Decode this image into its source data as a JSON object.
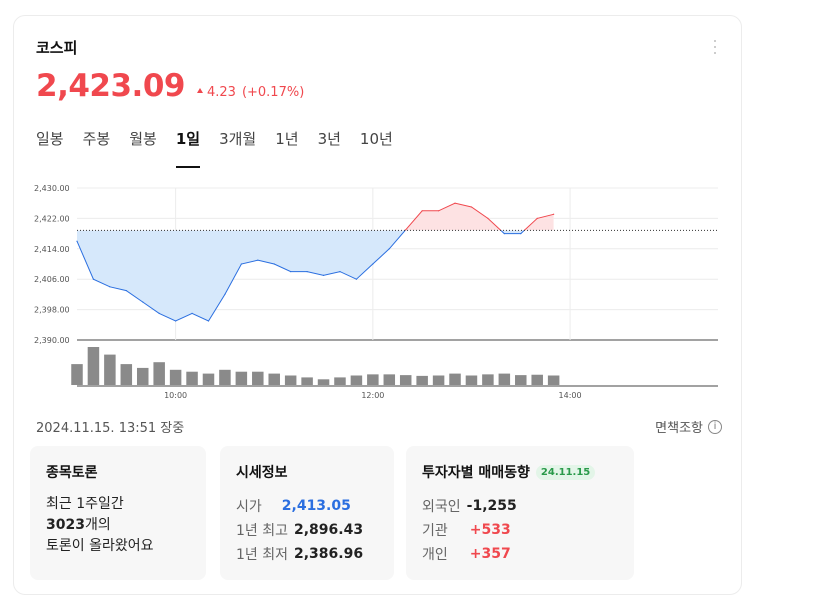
{
  "index_name": "코스피",
  "price": "2,423.09",
  "change": {
    "amount": "4.23",
    "percent": "(+0.17%)",
    "direction": "up"
  },
  "tabs": [
    {
      "label": "일봉",
      "active": false
    },
    {
      "label": "주봉",
      "active": false
    },
    {
      "label": "월봉",
      "active": false
    },
    {
      "label": "1일",
      "active": true
    },
    {
      "label": "3개월",
      "active": false
    },
    {
      "label": "1년",
      "active": false
    },
    {
      "label": "3년",
      "active": false
    },
    {
      "label": "10년",
      "active": false
    }
  ],
  "colors": {
    "up": "#f0484e",
    "down": "#2b6fe0",
    "up_fill": "#fde2e3",
    "down_fill": "#d6e8fb",
    "volume": "#8a8a8a"
  },
  "chart_data": {
    "type": "area",
    "yticks": [
      "2,430.00",
      "2,422.00",
      "2,414.00",
      "2,406.00",
      "2,398.00",
      "2,390.00"
    ],
    "ylim": [
      2390,
      2430
    ],
    "baseline": 2418.86,
    "xticks": [
      "10:00",
      "12:00",
      "14:00"
    ],
    "x_range": [
      "09:00",
      "15:30"
    ],
    "x": [
      "09:00",
      "09:10",
      "09:20",
      "09:30",
      "09:40",
      "09:50",
      "10:00",
      "10:10",
      "10:20",
      "10:30",
      "10:40",
      "10:50",
      "11:00",
      "11:10",
      "11:20",
      "11:30",
      "11:40",
      "11:50",
      "12:00",
      "12:10",
      "12:20",
      "12:30",
      "12:40",
      "12:50",
      "13:00",
      "13:10",
      "13:20",
      "13:30",
      "13:40",
      "13:50"
    ],
    "y": [
      2416,
      2406,
      2404,
      2403,
      2400,
      2397,
      2395,
      2397,
      2395,
      2402,
      2410,
      2411,
      2410,
      2408,
      2408,
      2407,
      2408,
      2406,
      2410,
      2414,
      2419,
      2424,
      2424,
      2426,
      2425,
      2422,
      2418,
      2418,
      2422,
      2423.09
    ],
    "volume": [
      55,
      100,
      80,
      55,
      45,
      60,
      40,
      35,
      30,
      40,
      35,
      35,
      30,
      25,
      20,
      15,
      20,
      25,
      28,
      28,
      26,
      24,
      25,
      30,
      25,
      28,
      30,
      26,
      27,
      25
    ]
  },
  "status": {
    "datetime": "2024.11.15. 13:51 장중",
    "disclaimer": "면책조항",
    "info_icon": "ⓘ"
  },
  "panels": {
    "discussion": {
      "title": "종목토론",
      "line1": "최근 1주일간",
      "count": "3023",
      "count_suffix": "개의",
      "line3": "토론이 올라왔어요"
    },
    "quote": {
      "title": "시세정보",
      "rows": [
        {
          "label": "시가",
          "value": "2,413.05",
          "tone": "blue"
        },
        {
          "label": "1년 최고",
          "value": "2,896.43",
          "tone": "normal"
        },
        {
          "label": "1년 최저",
          "value": "2,386.96",
          "tone": "normal"
        }
      ]
    },
    "investors": {
      "title": "투자자별 매매동향",
      "date_badge": "24.11.15",
      "rows": [
        {
          "label": "외국인",
          "value": "-1,255",
          "tone": "normal"
        },
        {
          "label": "기관",
          "value": "+533",
          "tone": "red"
        },
        {
          "label": "개인",
          "value": "+357",
          "tone": "red"
        }
      ]
    }
  }
}
